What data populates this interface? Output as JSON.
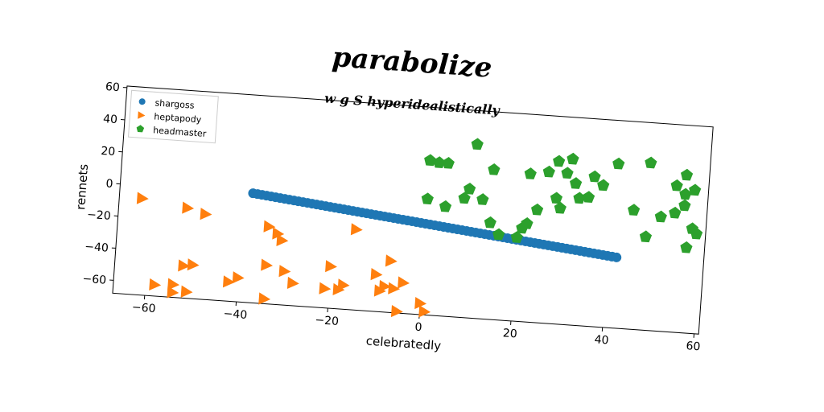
{
  "title": "parabolize",
  "subtitle": "w g S hyperidealistically",
  "chart_data": {
    "type": "scatter",
    "xlabel": "celebratedly",
    "ylabel": "rennets",
    "xlim": [
      -67,
      61
    ],
    "ylim": [
      -68,
      61
    ],
    "xticks": [
      -60,
      -40,
      -20,
      0,
      20,
      40,
      60
    ],
    "yticks": [
      -60,
      -40,
      -20,
      0,
      20,
      40,
      60
    ],
    "grid": false,
    "legend": "top-left",
    "series": [
      {
        "name": "shargoss",
        "marker": "circle",
        "color": "#1f77b4",
        "points": [
          [
            -38,
            0.0
          ],
          [
            -37,
            -0.3
          ],
          [
            -36,
            -0.6
          ],
          [
            -35,
            -0.9
          ],
          [
            -34,
            -1.2
          ],
          [
            -33,
            -1.5
          ],
          [
            -32,
            -1.8
          ],
          [
            -31,
            -2.1
          ],
          [
            -30,
            -2.4
          ],
          [
            -29,
            -2.7
          ],
          [
            -28,
            -3.0
          ],
          [
            -27,
            -3.3
          ],
          [
            -26,
            -3.6
          ],
          [
            -25,
            -3.9
          ],
          [
            -24,
            -4.2
          ],
          [
            -23,
            -4.5
          ],
          [
            -22,
            -4.8
          ],
          [
            -21,
            -5.1
          ],
          [
            -20,
            -5.4
          ],
          [
            -19,
            -5.7
          ],
          [
            -18,
            -6.0
          ],
          [
            -17,
            -6.3
          ],
          [
            -16,
            -6.6
          ],
          [
            -15,
            -6.9
          ],
          [
            -14,
            -7.2
          ],
          [
            -13,
            -7.5
          ],
          [
            -12,
            -7.8
          ],
          [
            -11,
            -8.1
          ],
          [
            -10,
            -8.4
          ],
          [
            -9,
            -8.7
          ],
          [
            -8,
            -9.0
          ],
          [
            -7,
            -9.3
          ],
          [
            -6,
            -9.6
          ],
          [
            -5,
            -9.9
          ],
          [
            -4,
            -10.2
          ],
          [
            -3,
            -10.5
          ],
          [
            -2,
            -10.8
          ],
          [
            -1,
            -11.1
          ],
          [
            0,
            -11.4
          ],
          [
            1,
            -11.7
          ],
          [
            2,
            -12.0
          ],
          [
            3,
            -12.3
          ],
          [
            4,
            -12.6
          ],
          [
            5,
            -12.9
          ],
          [
            6,
            -13.2
          ],
          [
            7,
            -13.5
          ],
          [
            8,
            -13.8
          ],
          [
            9,
            -14.1
          ],
          [
            10,
            -14.4
          ],
          [
            11,
            -14.7
          ],
          [
            12,
            -15.0
          ],
          [
            13,
            -15.3
          ],
          [
            14,
            -15.6
          ],
          [
            15,
            -15.9
          ],
          [
            16,
            -16.2
          ],
          [
            17,
            -16.5
          ],
          [
            18,
            -16.8
          ],
          [
            19,
            -17.1
          ],
          [
            20,
            -17.4
          ],
          [
            21,
            -17.7
          ],
          [
            22,
            -18.0
          ],
          [
            23,
            -18.3
          ],
          [
            24,
            -18.6
          ],
          [
            25,
            -18.9
          ],
          [
            26,
            -19.2
          ],
          [
            27,
            -19.5
          ],
          [
            28,
            -19.8
          ],
          [
            29,
            -20.1
          ],
          [
            30,
            -20.4
          ],
          [
            31,
            -20.7
          ],
          [
            32,
            -21.0
          ],
          [
            33,
            -21.3
          ],
          [
            34,
            -21.6
          ],
          [
            35,
            -21.9
          ],
          [
            36,
            -22.2
          ],
          [
            37,
            -22.5
          ],
          [
            38,
            -22.8
          ],
          [
            39,
            -23.1
          ],
          [
            40,
            -23.4
          ],
          [
            41,
            -23.7
          ],
          [
            42,
            -24.0
          ]
        ]
      },
      {
        "name": "heptapody",
        "marker": "triangle-right",
        "color": "#ff7f0e",
        "points": [
          [
            -62,
            -8
          ],
          [
            -52,
            -12
          ],
          [
            -48,
            -15
          ],
          [
            -34,
            -20
          ],
          [
            -32,
            -24
          ],
          [
            -31,
            -28
          ],
          [
            -15,
            -18
          ],
          [
            -7,
            -36
          ],
          [
            -34,
            -44
          ],
          [
            -20,
            -42
          ],
          [
            -52,
            -48
          ],
          [
            -50,
            -47
          ],
          [
            -42,
            -56
          ],
          [
            -40,
            -53
          ],
          [
            -30,
            -47
          ],
          [
            -28,
            -54
          ],
          [
            -21,
            -56
          ],
          [
            -18,
            -56
          ],
          [
            -17,
            -53
          ],
          [
            -10,
            -45
          ],
          [
            -8,
            -52
          ],
          [
            -4,
            -49
          ],
          [
            -6,
            -53
          ],
          [
            -9,
            -55
          ],
          [
            -54,
            -60
          ],
          [
            -54,
            -65
          ],
          [
            -51,
            -64
          ],
          [
            -58,
            -61
          ],
          [
            -34,
            -65
          ],
          [
            -5,
            -67
          ],
          [
            0,
            -61
          ],
          [
            1,
            -66
          ]
        ]
      },
      {
        "name": "headmaster",
        "marker": "pentagon",
        "color": "#2ca02c",
        "points": [
          [
            0,
            28
          ],
          [
            2,
            27
          ],
          [
            4,
            27
          ],
          [
            10,
            40
          ],
          [
            14,
            25
          ],
          [
            22,
            24
          ],
          [
            26,
            26
          ],
          [
            28,
            33
          ],
          [
            31,
            35
          ],
          [
            30,
            26
          ],
          [
            32,
            20
          ],
          [
            36,
            25
          ],
          [
            38,
            20
          ],
          [
            41,
            34
          ],
          [
            48,
            36
          ],
          [
            54,
            23
          ],
          [
            56,
            30
          ],
          [
            58,
            21
          ],
          [
            56,
            18
          ],
          [
            0,
            4
          ],
          [
            4,
            0
          ],
          [
            8,
            6
          ],
          [
            9,
            12
          ],
          [
            12,
            6
          ],
          [
            14,
            -8
          ],
          [
            16,
            -15
          ],
          [
            20,
            -16
          ],
          [
            21,
            -10
          ],
          [
            22,
            -7
          ],
          [
            24,
            2
          ],
          [
            28,
            10
          ],
          [
            29,
            4
          ],
          [
            33,
            11
          ],
          [
            35,
            12
          ],
          [
            45,
            6
          ],
          [
            48,
            -10
          ],
          [
            51,
            3
          ],
          [
            54,
            6
          ],
          [
            56,
            11
          ],
          [
            58,
            -3
          ],
          [
            59,
            -6
          ],
          [
            57,
            -15
          ]
        ]
      }
    ]
  }
}
